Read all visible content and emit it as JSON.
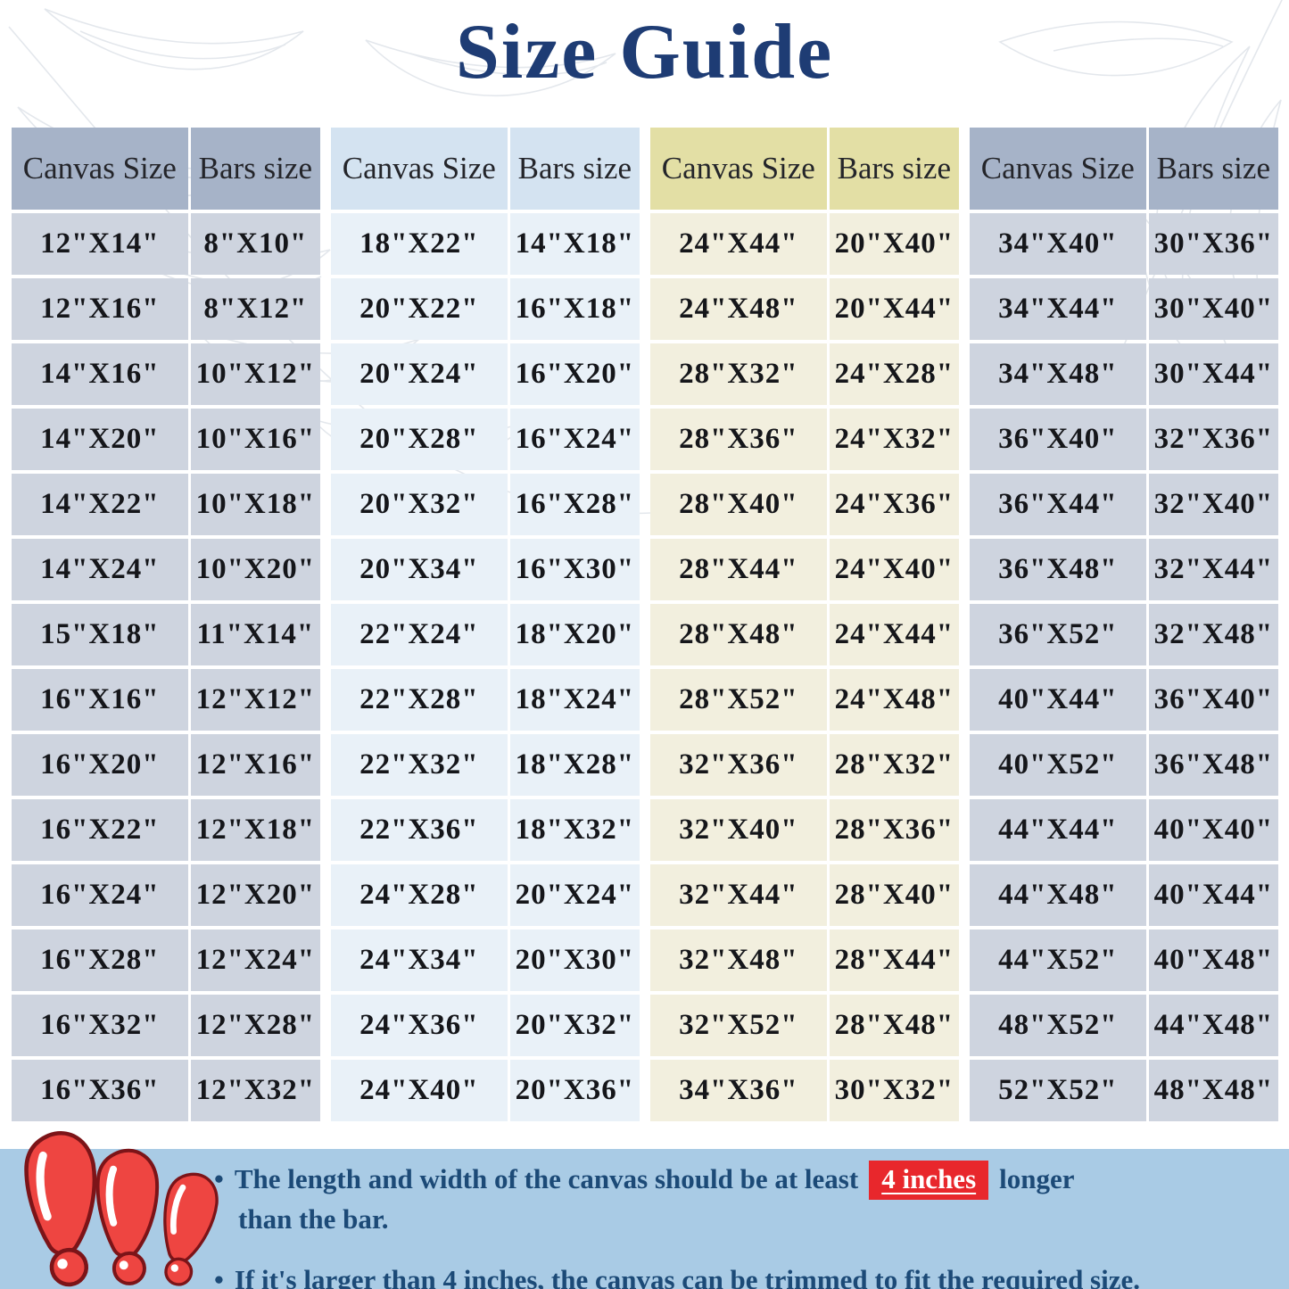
{
  "title": "Size Guide",
  "tables": [
    {
      "canvas_header": "Canvas Size",
      "bars_header": "Bars size",
      "theme": "slate",
      "rows": [
        [
          "12\"X14\"",
          "8\"X10\""
        ],
        [
          "12\"X16\"",
          "8\"X12\""
        ],
        [
          "14\"X16\"",
          "10\"X12\""
        ],
        [
          "14\"X20\"",
          "10\"X16\""
        ],
        [
          "14\"X22\"",
          "10\"X18\""
        ],
        [
          "14\"X24\"",
          "10\"X20\""
        ],
        [
          "15\"X18\"",
          "11\"X14\""
        ],
        [
          "16\"X16\"",
          "12\"X12\""
        ],
        [
          "16\"X20\"",
          "12\"X16\""
        ],
        [
          "16\"X22\"",
          "12\"X18\""
        ],
        [
          "16\"X24\"",
          "12\"X20\""
        ],
        [
          "16\"X28\"",
          "12\"X24\""
        ],
        [
          "16\"X32\"",
          "12\"X28\""
        ],
        [
          "16\"X36\"",
          "12\"X32\""
        ]
      ]
    },
    {
      "canvas_header": "Canvas Size",
      "bars_header": "Bars size",
      "theme": "lightblue",
      "rows": [
        [
          "18\"X22\"",
          "14\"X18\""
        ],
        [
          "20\"X22\"",
          "16\"X18\""
        ],
        [
          "20\"X24\"",
          "16\"X20\""
        ],
        [
          "20\"X28\"",
          "16\"X24\""
        ],
        [
          "20\"X32\"",
          "16\"X28\""
        ],
        [
          "20\"X34\"",
          "16\"X30\""
        ],
        [
          "22\"X24\"",
          "18\"X20\""
        ],
        [
          "22\"X28\"",
          "18\"X24\""
        ],
        [
          "22\"X32\"",
          "18\"X28\""
        ],
        [
          "22\"X36\"",
          "18\"X32\""
        ],
        [
          "24\"X28\"",
          "20\"X24\""
        ],
        [
          "24\"X34\"",
          "20\"X30\""
        ],
        [
          "24\"X36\"",
          "20\"X32\""
        ],
        [
          "24\"X40\"",
          "20\"X36\""
        ]
      ]
    },
    {
      "canvas_header": "Canvas Size",
      "bars_header": "Bars size",
      "theme": "cream",
      "rows": [
        [
          "24\"X44\"",
          "20\"X40\""
        ],
        [
          "24\"X48\"",
          "20\"X44\""
        ],
        [
          "28\"X32\"",
          "24\"X28\""
        ],
        [
          "28\"X36\"",
          "24\"X32\""
        ],
        [
          "28\"X40\"",
          "24\"X36\""
        ],
        [
          "28\"X44\"",
          "24\"X40\""
        ],
        [
          "28\"X48\"",
          "24\"X44\""
        ],
        [
          "28\"X52\"",
          "24\"X48\""
        ],
        [
          "32\"X36\"",
          "28\"X32\""
        ],
        [
          "32\"X40\"",
          "28\"X36\""
        ],
        [
          "32\"X44\"",
          "28\"X40\""
        ],
        [
          "32\"X48\"",
          "28\"X44\""
        ],
        [
          "32\"X52\"",
          "28\"X48\""
        ],
        [
          "34\"X36\"",
          "30\"X32\""
        ]
      ]
    },
    {
      "canvas_header": "Canvas Size",
      "bars_header": "Bars size",
      "theme": "slate",
      "rows": [
        [
          "34\"X40\"",
          "30\"X36\""
        ],
        [
          "34\"X44\"",
          "30\"X40\""
        ],
        [
          "34\"X48\"",
          "30\"X44\""
        ],
        [
          "36\"X40\"",
          "32\"X36\""
        ],
        [
          "36\"X44\"",
          "32\"X40\""
        ],
        [
          "36\"X48\"",
          "32\"X44\""
        ],
        [
          "36\"X52\"",
          "32\"X48\""
        ],
        [
          "40\"X44\"",
          "36\"X40\""
        ],
        [
          "40\"X52\"",
          "36\"X48\""
        ],
        [
          "44\"X44\"",
          "40\"X40\""
        ],
        [
          "44\"X48\"",
          "40\"X44\""
        ],
        [
          "44\"X52\"",
          "40\"X48\""
        ],
        [
          "48\"X52\"",
          "44\"X48\""
        ],
        [
          "52\"X52\"",
          "48\"X48\""
        ]
      ]
    }
  ],
  "notes": {
    "bullet": "•",
    "note1_prefix": "The length and width of the canvas should be at least",
    "note1_highlight": "4 inches",
    "note1_suffix": "longer",
    "note1_line2": "than the bar.",
    "note2": "If it's larger than 4 inches, the canvas can be trimmed to fit the required size."
  },
  "colors": {
    "title_navy": "#1e3c74",
    "note_blue": "#1c4a77",
    "highlight_red": "#e8272c",
    "band_blue": "#a9cbe5",
    "slate_header": "#a6b3c8",
    "slate_body": "#ced4df",
    "lightblue_header": "#d4e3f1",
    "lightblue_body": "#e9f1f8",
    "cream_header": "#e3dfa5",
    "cream_body": "#f2efde",
    "exclamation_red": "#ee4541",
    "exclamation_outline": "#7c1418"
  }
}
